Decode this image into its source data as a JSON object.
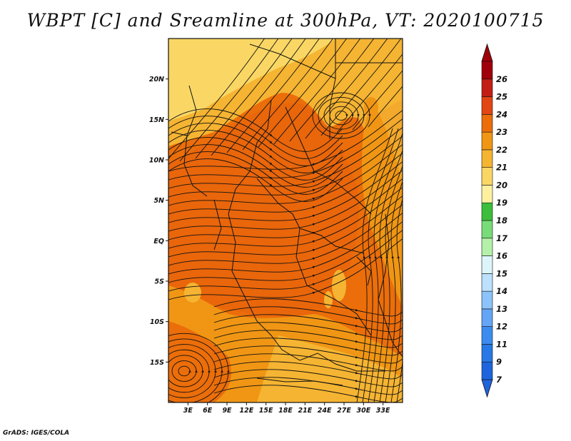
{
  "title": "WBPT [C] and Sreamline at 300hPa, VT: 2020100715",
  "credit": "GrADS: IGES/COLA",
  "map": {
    "lon_range": [
      0,
      36
    ],
    "lat_range": [
      -20,
      25
    ],
    "lat_labels": [
      "20N",
      "15N",
      "10N",
      "5N",
      "EQ",
      "5S",
      "10S",
      "15S"
    ],
    "lat_values": [
      20,
      15,
      10,
      5,
      0,
      -5,
      -10,
      -15
    ],
    "lon_labels": [
      "3E",
      "6E",
      "9E",
      "12E",
      "15E",
      "18E",
      "21E",
      "24E",
      "27E",
      "30E",
      "33E"
    ],
    "lon_values": [
      3,
      6,
      9,
      12,
      15,
      18,
      21,
      24,
      27,
      30,
      33
    ]
  },
  "colorbar": {
    "labels": [
      "7",
      "9",
      "11",
      "12",
      "13",
      "14",
      "15",
      "16",
      "17",
      "18",
      "19",
      "20",
      "21",
      "22",
      "23",
      "24",
      "25",
      "26"
    ],
    "colors": [
      "#1e64dc",
      "#2878e6",
      "#3c8cf0",
      "#64a5f5",
      "#8cc3fa",
      "#bce1fc",
      "#dcf5fa",
      "#b4f0aa",
      "#78dc78",
      "#3cbe3c",
      "#fff0a0",
      "#fad764",
      "#f5b432",
      "#f09614",
      "#eb6e0a",
      "#e14614",
      "#c31e14",
      "#a0000a"
    ]
  }
}
